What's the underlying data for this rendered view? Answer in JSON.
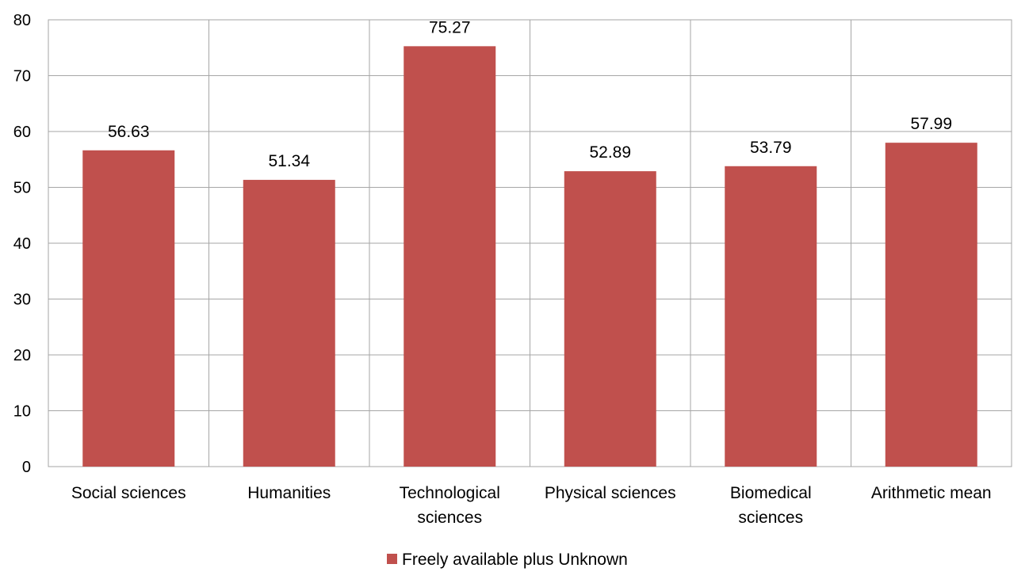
{
  "chart_data": {
    "type": "bar",
    "categories": [
      [
        "Social sciences"
      ],
      [
        "Humanities"
      ],
      [
        "Technological",
        "sciences"
      ],
      [
        "Physical sciences"
      ],
      [
        "Biomedical",
        "sciences"
      ],
      [
        "Arithmetic mean"
      ]
    ],
    "series": [
      {
        "name": "Freely available plus Unknown",
        "color": "#c0504d",
        "values": [
          56.63,
          51.34,
          75.27,
          52.89,
          53.79,
          57.99
        ],
        "labels": [
          "56.63",
          "51.34",
          "75.27",
          "52.89",
          "53.79",
          "57.99"
        ]
      }
    ],
    "ylim": [
      0,
      80
    ],
    "yticks": [
      "0",
      "10",
      "20",
      "30",
      "40",
      "50",
      "60",
      "70",
      "80"
    ],
    "grid": {
      "horizontal": true,
      "vertical": true
    },
    "legend": "bottom-center"
  }
}
